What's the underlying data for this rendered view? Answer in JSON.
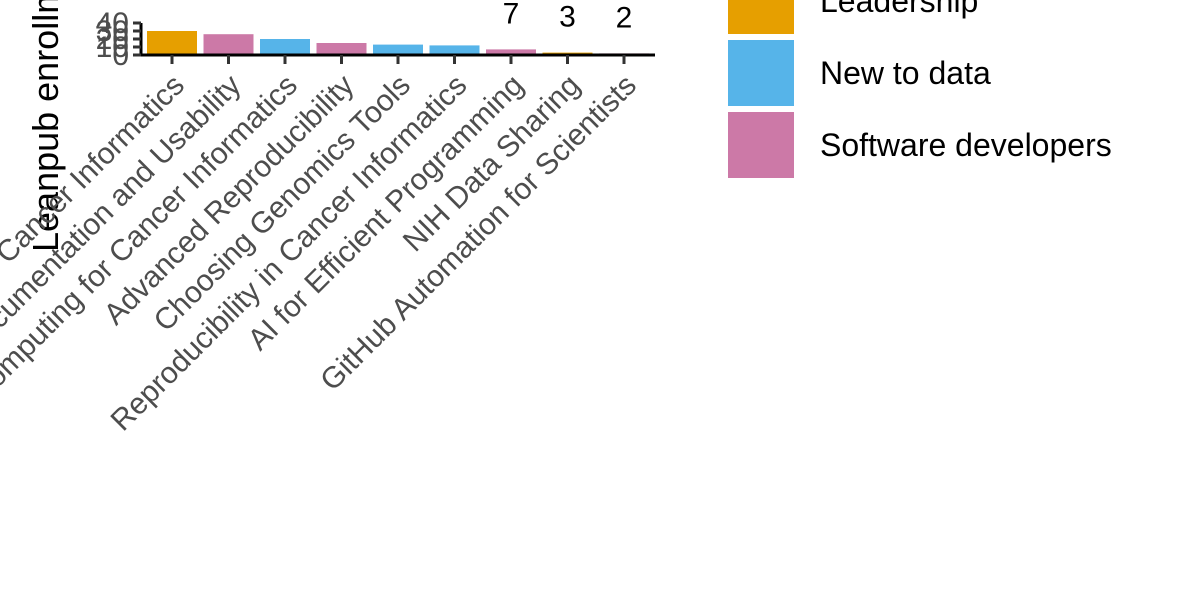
{
  "chart_data": {
    "type": "bar",
    "ylabel": "Leanpub enrollments",
    "ylim": [
      0,
      40
    ],
    "yticks": [
      0,
      10,
      20,
      30,
      40
    ],
    "bars": [
      {
        "category": "Data Management and Sharing for Cancer Informatics",
        "value": 30,
        "group": "Leadership"
      },
      {
        "category": "Documentation and Usability",
        "value": 26,
        "group": "Software developers"
      },
      {
        "category": "Computing for Cancer Informatics",
        "value": 20,
        "group": "New to data"
      },
      {
        "category": "Advanced Reproducibility",
        "value": 15,
        "group": "Software developers"
      },
      {
        "category": "Choosing Genomics Tools",
        "value": 13,
        "group": "New to data"
      },
      {
        "category": "Reproducibility in Cancer Informatics",
        "value": 12,
        "group": "New to data"
      },
      {
        "category": "AI for Efficient Programming",
        "value": 7,
        "group": "Software developers"
      },
      {
        "category": "NIH Data Sharing",
        "value": 3,
        "group": "Leadership"
      },
      {
        "category": "GitHub Automation for Scientists",
        "value": 2,
        "group": "Software developers"
      }
    ],
    "data_labels": [
      {
        "bar_index": 6,
        "text": "7"
      },
      {
        "bar_index": 7,
        "text": "3"
      },
      {
        "bar_index": 8,
        "text": "2"
      }
    ],
    "legend": {
      "placement": "right",
      "items": [
        {
          "label": "Leadership",
          "color": "#E69F00"
        },
        {
          "label": "New to data",
          "color": "#56B4E9"
        },
        {
          "label": "Software developers",
          "color": "#CC79A7"
        }
      ]
    }
  }
}
